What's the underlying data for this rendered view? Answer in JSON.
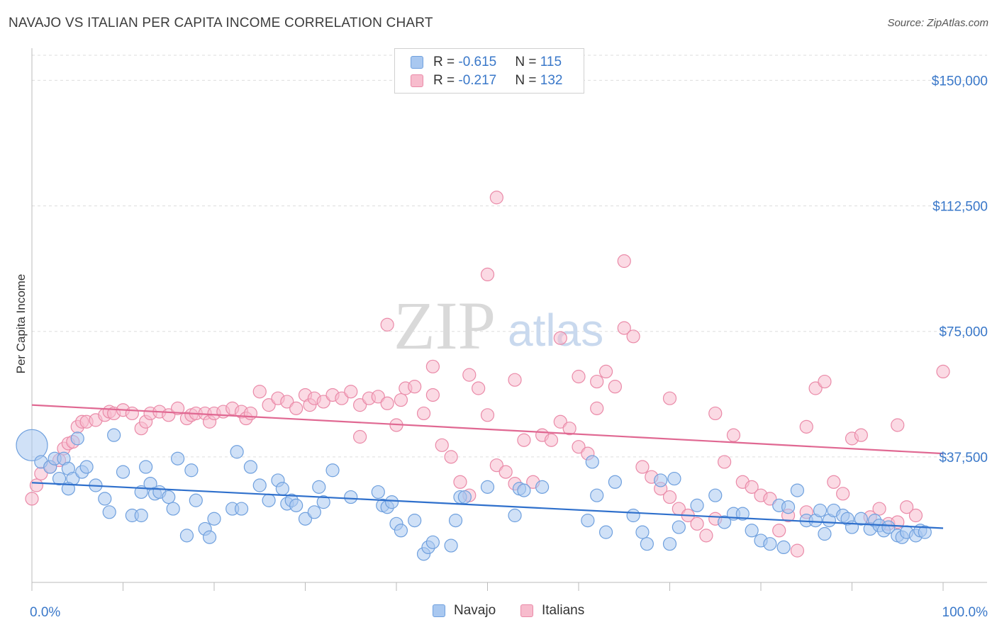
{
  "title": "NAVAJO VS ITALIAN PER CAPITA INCOME CORRELATION CHART",
  "source": "Source: ZipAtlas.com",
  "watermark": {
    "part1": "ZIP",
    "part2": "atlas"
  },
  "legend": {
    "rows": [
      {
        "r_label": "R = ",
        "r_value": "-0.615",
        "n_label": "N = ",
        "n_value": "115",
        "color": "#a9c8f0",
        "border": "#6fa0de"
      },
      {
        "r_label": "R = ",
        "r_value": "-0.217",
        "n_label": "N = ",
        "n_value": "132",
        "color": "#f7bccd",
        "border": "#ea8aa8"
      }
    ]
  },
  "bottom_legend": {
    "navajo": "Navajo",
    "italians": "Italians"
  },
  "chart_data": {
    "type": "scatter",
    "title": "NAVAJO VS ITALIAN PER CAPITA INCOME CORRELATION CHART",
    "xlabel": "",
    "ylabel": "Per Capita Income",
    "xlim": [
      0,
      100
    ],
    "ylim": [
      0,
      157500
    ],
    "x_tick_labels": [
      "0.0%",
      "100.0%"
    ],
    "y_ticks": [
      37500,
      75000,
      112500,
      150000
    ],
    "y_tick_labels": [
      "$37,500",
      "$75,000",
      "$112,500",
      "$150,000"
    ],
    "grid": true,
    "legend_position": "top-center",
    "series": [
      {
        "name": "Navajo",
        "color": "#6fa0de",
        "fill": "#a9c8f0",
        "trend": {
          "x": [
            0,
            100
          ],
          "y": [
            29800,
            16200
          ]
        },
        "points": [
          [
            0,
            41000
          ],
          [
            1,
            36000
          ],
          [
            2,
            34500
          ],
          [
            2.5,
            37000
          ],
          [
            3,
            31000
          ],
          [
            3.5,
            37000
          ],
          [
            4,
            34000
          ],
          [
            4.5,
            31000
          ],
          [
            5,
            43000
          ],
          [
            5.5,
            33000
          ],
          [
            6,
            34500
          ],
          [
            7,
            29000
          ],
          [
            8,
            25000
          ],
          [
            8.5,
            21000
          ],
          [
            9,
            44000
          ],
          [
            10,
            33000
          ],
          [
            11,
            20000
          ],
          [
            12,
            27000
          ],
          [
            12.5,
            34500
          ],
          [
            13,
            29500
          ],
          [
            13.5,
            26500
          ],
          [
            14,
            27000
          ],
          [
            15,
            25500
          ],
          [
            15.5,
            22000
          ],
          [
            16,
            37000
          ],
          [
            17,
            14000
          ],
          [
            17.5,
            33500
          ],
          [
            18,
            24500
          ],
          [
            19,
            16000
          ],
          [
            19.5,
            13500
          ],
          [
            20,
            19000
          ],
          [
            22,
            22000
          ],
          [
            22.5,
            39000
          ],
          [
            23,
            22000
          ],
          [
            24,
            34500
          ],
          [
            25,
            29000
          ],
          [
            26,
            24500
          ],
          [
            27,
            30500
          ],
          [
            27.5,
            28000
          ],
          [
            28,
            23500
          ],
          [
            28.5,
            24500
          ],
          [
            29,
            23000
          ],
          [
            30,
            19000
          ],
          [
            31,
            21000
          ],
          [
            31.5,
            28500
          ],
          [
            32,
            24000
          ],
          [
            33,
            33500
          ],
          [
            35,
            25500
          ],
          [
            38,
            27000
          ],
          [
            38.5,
            23000
          ],
          [
            39,
            22500
          ],
          [
            39.5,
            24000
          ],
          [
            40,
            17500
          ],
          [
            40.5,
            15500
          ],
          [
            42,
            18500
          ],
          [
            43,
            8500
          ],
          [
            43.5,
            10500
          ],
          [
            44,
            12000
          ],
          [
            46,
            11000
          ],
          [
            46.5,
            18500
          ],
          [
            47,
            25500
          ],
          [
            47.5,
            25500
          ],
          [
            53,
            20000
          ],
          [
            53.5,
            28000
          ],
          [
            54,
            27500
          ],
          [
            61,
            18500
          ],
          [
            61.5,
            36000
          ],
          [
            62,
            26000
          ],
          [
            63,
            15000
          ],
          [
            64,
            30000
          ],
          [
            66,
            20000
          ],
          [
            67,
            15000
          ],
          [
            67.5,
            11500
          ],
          [
            69,
            30500
          ],
          [
            70,
            11500
          ],
          [
            70.5,
            31000
          ],
          [
            71,
            16500
          ],
          [
            73,
            23000
          ],
          [
            75,
            26000
          ],
          [
            76,
            18000
          ],
          [
            77,
            20500
          ],
          [
            78,
            20500
          ],
          [
            79,
            15500
          ],
          [
            80,
            12500
          ],
          [
            81,
            11500
          ],
          [
            82,
            23000
          ],
          [
            82.5,
            10500
          ],
          [
            83,
            22500
          ],
          [
            84,
            27500
          ],
          [
            85,
            18500
          ],
          [
            86,
            18500
          ],
          [
            86.5,
            21500
          ],
          [
            87,
            14500
          ],
          [
            87.5,
            18500
          ],
          [
            88,
            21500
          ],
          [
            89,
            20000
          ],
          [
            89.5,
            19000
          ],
          [
            90,
            16500
          ],
          [
            91,
            19000
          ],
          [
            92,
            16000
          ],
          [
            92.5,
            18500
          ],
          [
            93,
            17000
          ],
          [
            93.5,
            15500
          ],
          [
            94,
            16500
          ],
          [
            95,
            14000
          ],
          [
            95.5,
            13500
          ],
          [
            96,
            15000
          ],
          [
            97,
            14000
          ],
          [
            97.5,
            15500
          ],
          [
            98,
            15000
          ],
          [
            4,
            28000
          ],
          [
            12,
            20000
          ],
          [
            50,
            28500
          ],
          [
            56,
            28500
          ]
        ]
      },
      {
        "name": "Italians",
        "color": "#ea8aa8",
        "fill": "#f7bccd",
        "trend": {
          "x": [
            0,
            100
          ],
          "y": [
            53000,
            38500
          ]
        },
        "points": [
          [
            0,
            25000
          ],
          [
            0.5,
            29000
          ],
          [
            1,
            32500
          ],
          [
            2,
            34500
          ],
          [
            3,
            36500
          ],
          [
            3.5,
            40000
          ],
          [
            4,
            41500
          ],
          [
            4.5,
            42000
          ],
          [
            5,
            46500
          ],
          [
            5.5,
            48000
          ],
          [
            6,
            48000
          ],
          [
            7,
            48500
          ],
          [
            8,
            50000
          ],
          [
            8.5,
            51000
          ],
          [
            9,
            50500
          ],
          [
            10,
            51500
          ],
          [
            11,
            50500
          ],
          [
            12,
            46000
          ],
          [
            12.5,
            48000
          ],
          [
            13,
            50500
          ],
          [
            14,
            51000
          ],
          [
            15,
            50000
          ],
          [
            16,
            52000
          ],
          [
            17,
            49000
          ],
          [
            17.5,
            50000
          ],
          [
            18,
            50500
          ],
          [
            19,
            50500
          ],
          [
            19.5,
            48000
          ],
          [
            20,
            50500
          ],
          [
            21,
            51000
          ],
          [
            22,
            52000
          ],
          [
            23,
            51000
          ],
          [
            23.5,
            49000
          ],
          [
            24,
            50500
          ],
          [
            25,
            57000
          ],
          [
            26,
            53000
          ],
          [
            27,
            55000
          ],
          [
            28,
            54000
          ],
          [
            29,
            52000
          ],
          [
            30,
            56000
          ],
          [
            30.5,
            53000
          ],
          [
            31,
            55000
          ],
          [
            32,
            54000
          ],
          [
            33,
            56000
          ],
          [
            34,
            55000
          ],
          [
            35,
            57000
          ],
          [
            36,
            53000
          ],
          [
            37,
            55000
          ],
          [
            38,
            55500
          ],
          [
            39,
            53500
          ],
          [
            40,
            47000
          ],
          [
            40.5,
            54500
          ],
          [
            41,
            58000
          ],
          [
            42,
            58500
          ],
          [
            43,
            50500
          ],
          [
            44,
            56000
          ],
          [
            45,
            41000
          ],
          [
            46,
            37500
          ],
          [
            47,
            30000
          ],
          [
            48,
            26000
          ],
          [
            49,
            58000
          ],
          [
            50,
            50000
          ],
          [
            51,
            35000
          ],
          [
            52,
            33000
          ],
          [
            53,
            29500
          ],
          [
            54,
            42500
          ],
          [
            55,
            30000
          ],
          [
            56,
            44000
          ],
          [
            57,
            42500
          ],
          [
            58,
            48000
          ],
          [
            59,
            46000
          ],
          [
            60,
            40500
          ],
          [
            61,
            38500
          ],
          [
            62,
            52000
          ],
          [
            63,
            63000
          ],
          [
            64,
            58500
          ],
          [
            65,
            76000
          ],
          [
            66,
            73500
          ],
          [
            67,
            34500
          ],
          [
            68,
            31500
          ],
          [
            69,
            28000
          ],
          [
            70,
            25500
          ],
          [
            71,
            22000
          ],
          [
            72,
            20000
          ],
          [
            73,
            17500
          ],
          [
            74,
            14000
          ],
          [
            75,
            19000
          ],
          [
            76,
            36000
          ],
          [
            77,
            44000
          ],
          [
            78,
            30000
          ],
          [
            79,
            28500
          ],
          [
            80,
            26000
          ],
          [
            81,
            25000
          ],
          [
            82,
            15500
          ],
          [
            83,
            20000
          ],
          [
            84,
            9500
          ],
          [
            85,
            21000
          ],
          [
            86,
            58000
          ],
          [
            87,
            60000
          ],
          [
            88,
            30000
          ],
          [
            89,
            26500
          ],
          [
            90,
            43000
          ],
          [
            91,
            44000
          ],
          [
            92,
            19500
          ],
          [
            93,
            22000
          ],
          [
            94,
            17500
          ],
          [
            95,
            18000
          ],
          [
            96,
            22500
          ],
          [
            97,
            20000
          ],
          [
            100,
            63000
          ],
          [
            51,
            115000
          ],
          [
            50,
            92000
          ],
          [
            58,
            73000
          ],
          [
            65,
            96000
          ],
          [
            39,
            77000
          ],
          [
            53,
            60500
          ],
          [
            48,
            62000
          ],
          [
            62,
            60000
          ],
          [
            70,
            55000
          ],
          [
            75,
            50500
          ],
          [
            85,
            46500
          ],
          [
            95,
            47000
          ],
          [
            36,
            43500
          ],
          [
            44,
            64500
          ],
          [
            60,
            61500
          ]
        ]
      }
    ]
  }
}
